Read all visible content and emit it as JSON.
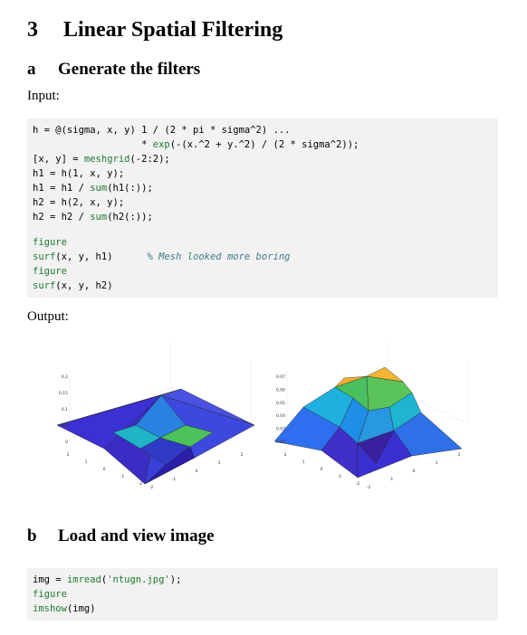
{
  "section": {
    "number": "3",
    "title": "Linear Spatial Filtering"
  },
  "subsections": [
    {
      "letter": "a",
      "title": "Generate the filters",
      "input_label": "Input:",
      "code": [
        [
          [
            {
              "text": "h = @(sigma, x, y) 1 / (2 * pi * sigma^2) ...",
              "style": "plain"
            }
          ],
          [
            {
              "text": "                   * ",
              "style": "plain"
            },
            {
              "text": "exp",
              "style": "fn"
            },
            {
              "text": "(-(x.^2 + y.^2) / (2 * sigma^2));",
              "style": "plain"
            }
          ],
          [
            {
              "text": "[x, y] = ",
              "style": "plain"
            },
            {
              "text": "meshgrid",
              "style": "fn"
            },
            {
              "text": "(-2:2);",
              "style": "plain"
            }
          ],
          [
            {
              "text": "h1 = h(1, x, y);",
              "style": "plain"
            }
          ],
          [
            {
              "text": "h1 = h1 / ",
              "style": "plain"
            },
            {
              "text": "sum",
              "style": "fn"
            },
            {
              "text": "(h1(:));",
              "style": "plain"
            }
          ],
          [
            {
              "text": "h2 = h(2, x, y);",
              "style": "plain"
            }
          ],
          [
            {
              "text": "h2 = h2 / ",
              "style": "plain"
            },
            {
              "text": "sum",
              "style": "fn"
            },
            {
              "text": "(h2(:));",
              "style": "plain"
            }
          ]
        ],
        [
          [
            {
              "text": "figure",
              "style": "fn"
            }
          ],
          [
            {
              "text": "surf",
              "style": "fn"
            },
            {
              "text": "(x, y, h1)      ",
              "style": "plain"
            },
            {
              "text": "% Mesh looked more boring",
              "style": "comment"
            }
          ],
          [
            {
              "text": "figure",
              "style": "fn"
            }
          ],
          [
            {
              "text": "surf",
              "style": "fn"
            },
            {
              "text": "(x, y, h2)",
              "style": "plain"
            }
          ]
        ]
      ],
      "output_label": "Output:",
      "figures": [
        {
          "zticks": [
            0.2,
            0.15,
            0.1,
            0.05,
            0
          ],
          "xticks": [
            2,
            1,
            0,
            -1,
            -2
          ],
          "yticks": [
            -2,
            -1,
            0,
            1,
            2
          ]
        },
        {
          "zticks": [
            0.07,
            0.06,
            0.05,
            0.04,
            0.03,
            0.02
          ],
          "xticks": [
            2,
            1,
            0,
            -1,
            -2
          ],
          "yticks": [
            -2,
            -1,
            0,
            1,
            2
          ]
        }
      ]
    },
    {
      "letter": "b",
      "title": "Load and view image",
      "code": [
        [
          [
            {
              "text": "img = ",
              "style": "plain"
            },
            {
              "text": "imread",
              "style": "fn"
            },
            {
              "text": "(",
              "style": "plain"
            },
            {
              "text": "'ntugn.jpg'",
              "style": "str"
            },
            {
              "text": ");",
              "style": "plain"
            }
          ],
          [
            {
              "text": "figure",
              "style": "fn"
            }
          ],
          [
            {
              "text": "imshow",
              "style": "fn"
            },
            {
              "text": "(img)",
              "style": "plain"
            }
          ]
        ]
      ]
    }
  ]
}
